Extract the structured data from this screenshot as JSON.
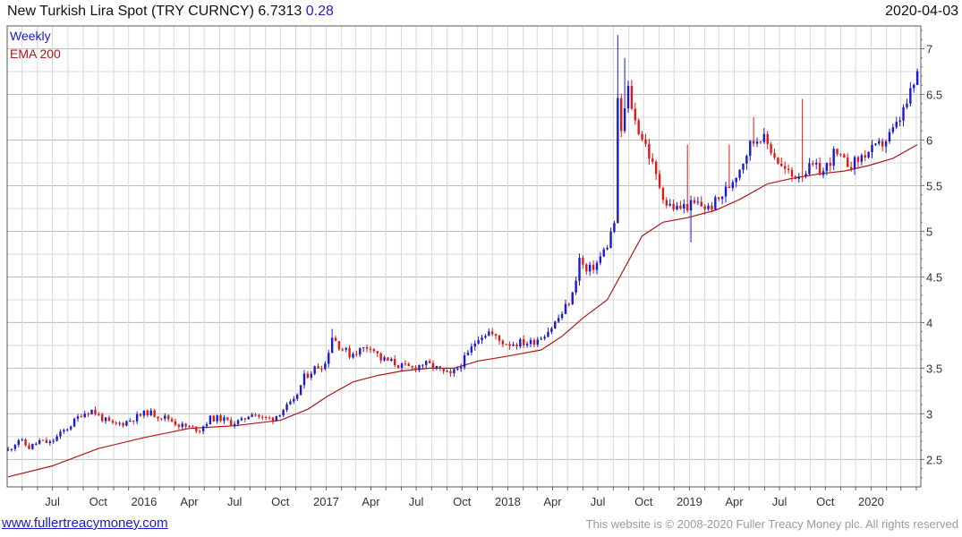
{
  "header": {
    "title": "New Turkish Lira Spot (TRY CURNCY)",
    "last": "6.7313",
    "change": "0.28",
    "date": "2020-04-03"
  },
  "footer": {
    "site": "www.fullertreacymoney.com",
    "copyright": "This website is © 2008-2020 Fuller Treacy Money plc. All rights reserved"
  },
  "colors": {
    "up": "#1a1ad0",
    "down": "#e01818",
    "ema": "#b01818",
    "grid": "#d8d8d8",
    "gridMajor": "#bdbdbd"
  },
  "chart_data": {
    "type": "candlestick",
    "legend": [
      {
        "label": "Weekly",
        "color": "#1a1ad0"
      },
      {
        "label": "EMA 200",
        "color": "#b01818"
      }
    ],
    "x_axis": {
      "ticks": [
        "Jul",
        "Oct",
        "2016",
        "Apr",
        "Jul",
        "Oct",
        "2017",
        "Apr",
        "Jul",
        "Oct",
        "2018",
        "Apr",
        "Jul",
        "Oct",
        "2019",
        "Apr",
        "Jul",
        "Oct",
        "2020"
      ],
      "tick_dates": [
        "2015-07-01",
        "2015-10-01",
        "2016-01-01",
        "2016-04-01",
        "2016-07-01",
        "2016-10-01",
        "2017-01-01",
        "2017-04-01",
        "2017-07-01",
        "2017-10-01",
        "2018-01-01",
        "2018-04-01",
        "2018-07-01",
        "2018-10-01",
        "2019-01-01",
        "2019-04-01",
        "2019-07-01",
        "2019-10-01",
        "2020-01-01"
      ],
      "range": [
        "2015-04-01",
        "2020-04-10"
      ]
    },
    "y_axis": {
      "ticks": [
        "2.5",
        "3",
        "3.5",
        "4",
        "4.5",
        "5",
        "5.5",
        "6",
        "6.5",
        "7"
      ],
      "range": [
        2.2,
        7.25
      ],
      "side": "right",
      "grid": true
    },
    "series": [
      {
        "name": "Weekly",
        "kind": "ohlc-weekly",
        "anchors": [
          [
            "2015-04-03",
            2.6
          ],
          [
            "2015-04-24",
            2.72
          ],
          [
            "2015-05-15",
            2.63
          ],
          [
            "2015-06-05",
            2.7
          ],
          [
            "2015-06-26",
            2.68
          ],
          [
            "2015-07-17",
            2.78
          ],
          [
            "2015-08-07",
            2.88
          ],
          [
            "2015-08-28",
            3.0
          ],
          [
            "2015-09-18",
            3.04
          ],
          [
            "2015-10-09",
            2.95
          ],
          [
            "2015-10-30",
            2.88
          ],
          [
            "2015-11-20",
            2.9
          ],
          [
            "2015-12-11",
            2.95
          ],
          [
            "2016-01-08",
            3.02
          ],
          [
            "2016-01-29",
            2.98
          ],
          [
            "2016-02-19",
            2.95
          ],
          [
            "2016-03-11",
            2.88
          ],
          [
            "2016-04-01",
            2.85
          ],
          [
            "2016-04-22",
            2.83
          ],
          [
            "2016-05-13",
            2.95
          ],
          [
            "2016-06-03",
            2.95
          ],
          [
            "2016-06-24",
            2.9
          ],
          [
            "2016-07-15",
            2.92
          ],
          [
            "2016-08-05",
            3.02
          ],
          [
            "2016-08-26",
            2.95
          ],
          [
            "2016-09-16",
            2.95
          ],
          [
            "2016-10-07",
            3.05
          ],
          [
            "2016-10-28",
            3.13
          ],
          [
            "2016-11-18",
            3.4
          ],
          [
            "2016-12-09",
            3.5
          ],
          [
            "2016-12-30",
            3.55
          ],
          [
            "2017-01-13",
            3.85
          ],
          [
            "2017-01-27",
            3.75
          ],
          [
            "2017-02-17",
            3.65
          ],
          [
            "2017-03-10",
            3.7
          ],
          [
            "2017-03-31",
            3.75
          ],
          [
            "2017-04-21",
            3.6
          ],
          [
            "2017-05-12",
            3.57
          ],
          [
            "2017-06-02",
            3.52
          ],
          [
            "2017-06-23",
            3.5
          ],
          [
            "2017-07-14",
            3.55
          ],
          [
            "2017-08-04",
            3.52
          ],
          [
            "2017-08-25",
            3.45
          ],
          [
            "2017-09-08",
            3.42
          ],
          [
            "2017-09-22",
            3.5
          ],
          [
            "2017-10-13",
            3.65
          ],
          [
            "2017-11-03",
            3.85
          ],
          [
            "2017-11-24",
            3.9
          ],
          [
            "2017-12-15",
            3.8
          ],
          [
            "2018-01-05",
            3.77
          ],
          [
            "2018-01-26",
            3.78
          ],
          [
            "2018-02-16",
            3.78
          ],
          [
            "2018-03-09",
            3.85
          ],
          [
            "2018-03-30",
            3.95
          ],
          [
            "2018-04-20",
            4.1
          ],
          [
            "2018-05-11",
            4.3
          ],
          [
            "2018-05-25",
            4.7
          ],
          [
            "2018-06-08",
            4.55
          ],
          [
            "2018-06-29",
            4.65
          ],
          [
            "2018-07-20",
            4.85
          ],
          [
            "2018-08-03",
            5.1
          ],
          [
            "2018-08-10",
            6.4
          ],
          [
            "2018-08-17",
            6.1
          ],
          [
            "2018-08-31",
            6.55
          ],
          [
            "2018-09-14",
            6.2
          ],
          [
            "2018-10-05",
            5.95
          ],
          [
            "2018-10-26",
            5.6
          ],
          [
            "2018-11-16",
            5.3
          ],
          [
            "2018-12-07",
            5.25
          ],
          [
            "2018-12-28",
            5.28
          ],
          [
            "2019-01-18",
            5.3
          ],
          [
            "2019-02-08",
            5.25
          ],
          [
            "2019-03-01",
            5.35
          ],
          [
            "2019-03-22",
            5.5
          ],
          [
            "2019-04-12",
            5.7
          ],
          [
            "2019-05-03",
            5.95
          ],
          [
            "2019-05-24",
            6.05
          ],
          [
            "2019-06-14",
            5.9
          ],
          [
            "2019-07-05",
            5.7
          ],
          [
            "2019-07-26",
            5.6
          ],
          [
            "2019-08-16",
            5.65
          ],
          [
            "2019-09-06",
            5.7
          ],
          [
            "2019-09-27",
            5.65
          ],
          [
            "2019-10-18",
            5.85
          ],
          [
            "2019-11-08",
            5.75
          ],
          [
            "2019-11-29",
            5.75
          ],
          [
            "2019-12-20",
            5.85
          ],
          [
            "2020-01-10",
            5.9
          ],
          [
            "2020-01-31",
            6.0
          ],
          [
            "2020-02-21",
            6.15
          ],
          [
            "2020-03-13",
            6.4
          ],
          [
            "2020-03-27",
            6.6
          ],
          [
            "2020-04-03",
            6.73
          ]
        ],
        "spikes": [
          [
            "2018-08-10",
            7.15
          ],
          [
            "2018-08-24",
            6.9
          ],
          [
            "2018-12-28",
            5.95
          ],
          [
            "2019-01-04",
            4.88
          ],
          [
            "2019-03-22",
            5.95
          ],
          [
            "2019-05-10",
            6.25
          ],
          [
            "2019-08-16",
            6.45
          ],
          [
            "2017-01-13",
            3.93
          ],
          [
            "2020-04-03",
            6.75
          ]
        ]
      },
      {
        "name": "EMA 200",
        "kind": "line",
        "points": [
          [
            "2015-04-03",
            2.31
          ],
          [
            "2015-07-01",
            2.43
          ],
          [
            "2015-10-01",
            2.62
          ],
          [
            "2016-01-01",
            2.74
          ],
          [
            "2016-04-01",
            2.84
          ],
          [
            "2016-07-01",
            2.87
          ],
          [
            "2016-10-01",
            2.93
          ],
          [
            "2016-11-25",
            3.05
          ],
          [
            "2017-01-06",
            3.2
          ],
          [
            "2017-02-24",
            3.35
          ],
          [
            "2017-04-14",
            3.42
          ],
          [
            "2017-06-02",
            3.47
          ],
          [
            "2017-07-28",
            3.5
          ],
          [
            "2017-09-15",
            3.5
          ],
          [
            "2017-11-03",
            3.58
          ],
          [
            "2017-12-29",
            3.63
          ],
          [
            "2018-03-09",
            3.7
          ],
          [
            "2018-04-20",
            3.85
          ],
          [
            "2018-06-01",
            4.05
          ],
          [
            "2018-07-20",
            4.25
          ],
          [
            "2018-08-24",
            4.6
          ],
          [
            "2018-09-28",
            4.95
          ],
          [
            "2018-11-09",
            5.1
          ],
          [
            "2018-12-28",
            5.15
          ],
          [
            "2019-02-22",
            5.23
          ],
          [
            "2019-04-12",
            5.35
          ],
          [
            "2019-06-07",
            5.52
          ],
          [
            "2019-07-26",
            5.58
          ],
          [
            "2019-09-20",
            5.63
          ],
          [
            "2019-11-08",
            5.66
          ],
          [
            "2019-12-27",
            5.72
          ],
          [
            "2020-02-14",
            5.8
          ],
          [
            "2020-04-03",
            5.95
          ]
        ]
      }
    ]
  }
}
